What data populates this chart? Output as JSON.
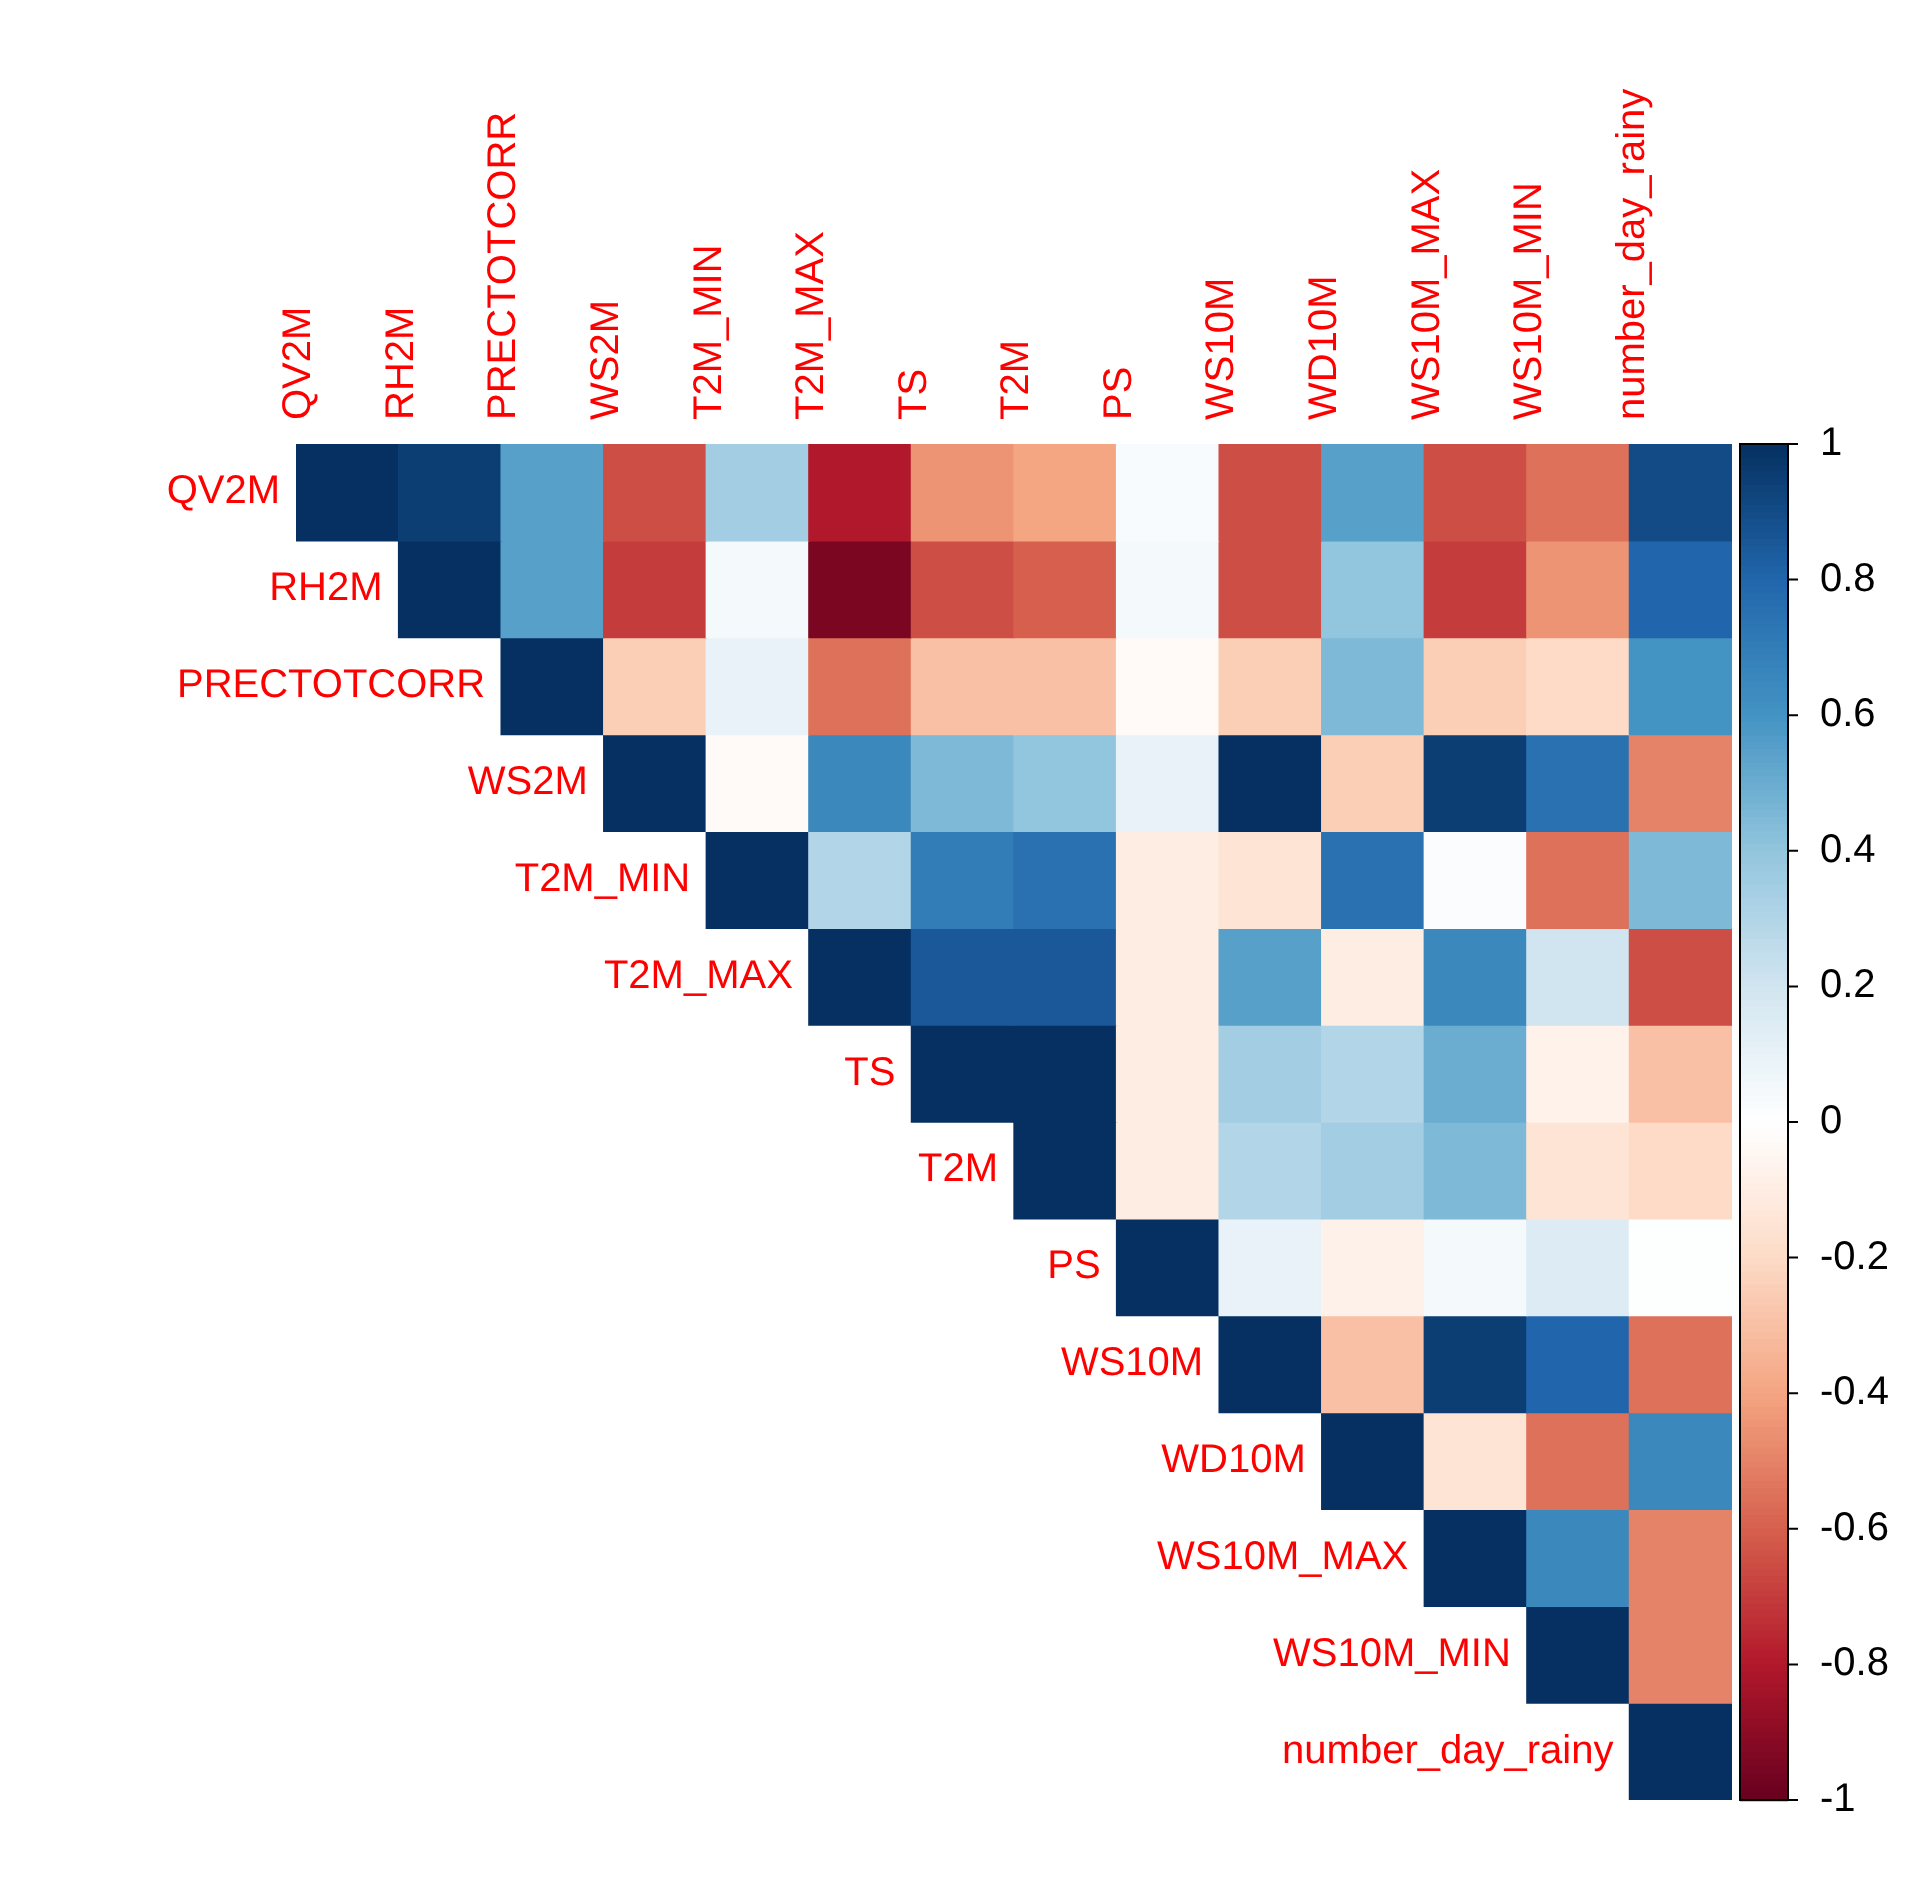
{
  "chart_data": {
    "type": "heatmap",
    "categories": [
      "QV2M",
      "RH2M",
      "PRECTOTCORR",
      "WS2M",
      "T2M_MIN",
      "T2M_MAX",
      "TS",
      "T2M",
      "PS",
      "WS10M",
      "WD10M",
      "WS10M_MAX",
      "WS10M_MIN",
      "number_day_rainy"
    ],
    "y_categories": [
      "QV2M",
      "RH2M",
      "PRECTOTCORR",
      "WS2M",
      "T2M_MIN",
      "T2M_MAX",
      "TS",
      "T2M",
      "PS",
      "WS10M",
      "WD10M",
      "WS10M_MAX",
      "WS10M_MIN",
      "number_day_rainy"
    ],
    "cells": [
      [
        1,
        0.95,
        0.55,
        -0.65,
        0.35,
        -0.8,
        -0.45,
        -0.4,
        0.03,
        -0.65,
        0.55,
        -0.65,
        -0.55,
        0.9
      ],
      [
        null,
        1,
        0.55,
        -0.7,
        0.05,
        -0.95,
        -0.65,
        -0.6,
        0.05,
        -0.65,
        0.4,
        -0.7,
        -0.45,
        0.8
      ],
      [
        null,
        null,
        1,
        -0.25,
        0.1,
        -0.55,
        -0.3,
        -0.3,
        -0.03,
        -0.25,
        0.45,
        -0.25,
        -0.2,
        0.6
      ],
      [
        null,
        null,
        null,
        1,
        -0.03,
        0.65,
        0.45,
        0.4,
        0.1,
        1,
        -0.25,
        0.95,
        0.75,
        -0.5
      ],
      [
        null,
        null,
        null,
        null,
        1,
        0.3,
        0.7,
        0.75,
        -0.1,
        -0.15,
        0.75,
        0.02,
        -0.55,
        0.45
      ],
      [
        null,
        null,
        null,
        null,
        null,
        1,
        0.85,
        0.85,
        -0.1,
        0.55,
        -0.1,
        0.65,
        0.2,
        -0.65
      ],
      [
        null,
        null,
        null,
        null,
        null,
        null,
        1,
        1,
        -0.1,
        0.35,
        0.3,
        0.5,
        -0.07,
        -0.3
      ],
      [
        null,
        null,
        null,
        null,
        null,
        null,
        null,
        1,
        -0.1,
        0.3,
        0.35,
        0.45,
        -0.15,
        -0.2
      ],
      [
        null,
        null,
        null,
        null,
        null,
        null,
        null,
        null,
        1,
        0.1,
        -0.08,
        0.05,
        0.15,
        0.01
      ],
      [
        null,
        null,
        null,
        null,
        null,
        null,
        null,
        null,
        null,
        1,
        -0.3,
        0.95,
        0.8,
        -0.55
      ],
      [
        null,
        null,
        null,
        null,
        null,
        null,
        null,
        null,
        null,
        null,
        1,
        -0.15,
        -0.55,
        0.65
      ],
      [
        null,
        null,
        null,
        null,
        null,
        null,
        null,
        null,
        null,
        null,
        null,
        1,
        0.65,
        -0.5
      ],
      [
        null,
        null,
        null,
        null,
        null,
        null,
        null,
        null,
        null,
        null,
        null,
        null,
        1,
        -0.5
      ],
      [
        null,
        null,
        null,
        null,
        null,
        null,
        null,
        null,
        null,
        null,
        null,
        null,
        null,
        1
      ]
    ],
    "clim": [
      -1,
      1
    ],
    "cticks": [
      -1,
      -0.8,
      -0.6,
      -0.4,
      -0.2,
      0,
      0.2,
      0.4,
      0.6,
      0.8,
      1
    ]
  }
}
